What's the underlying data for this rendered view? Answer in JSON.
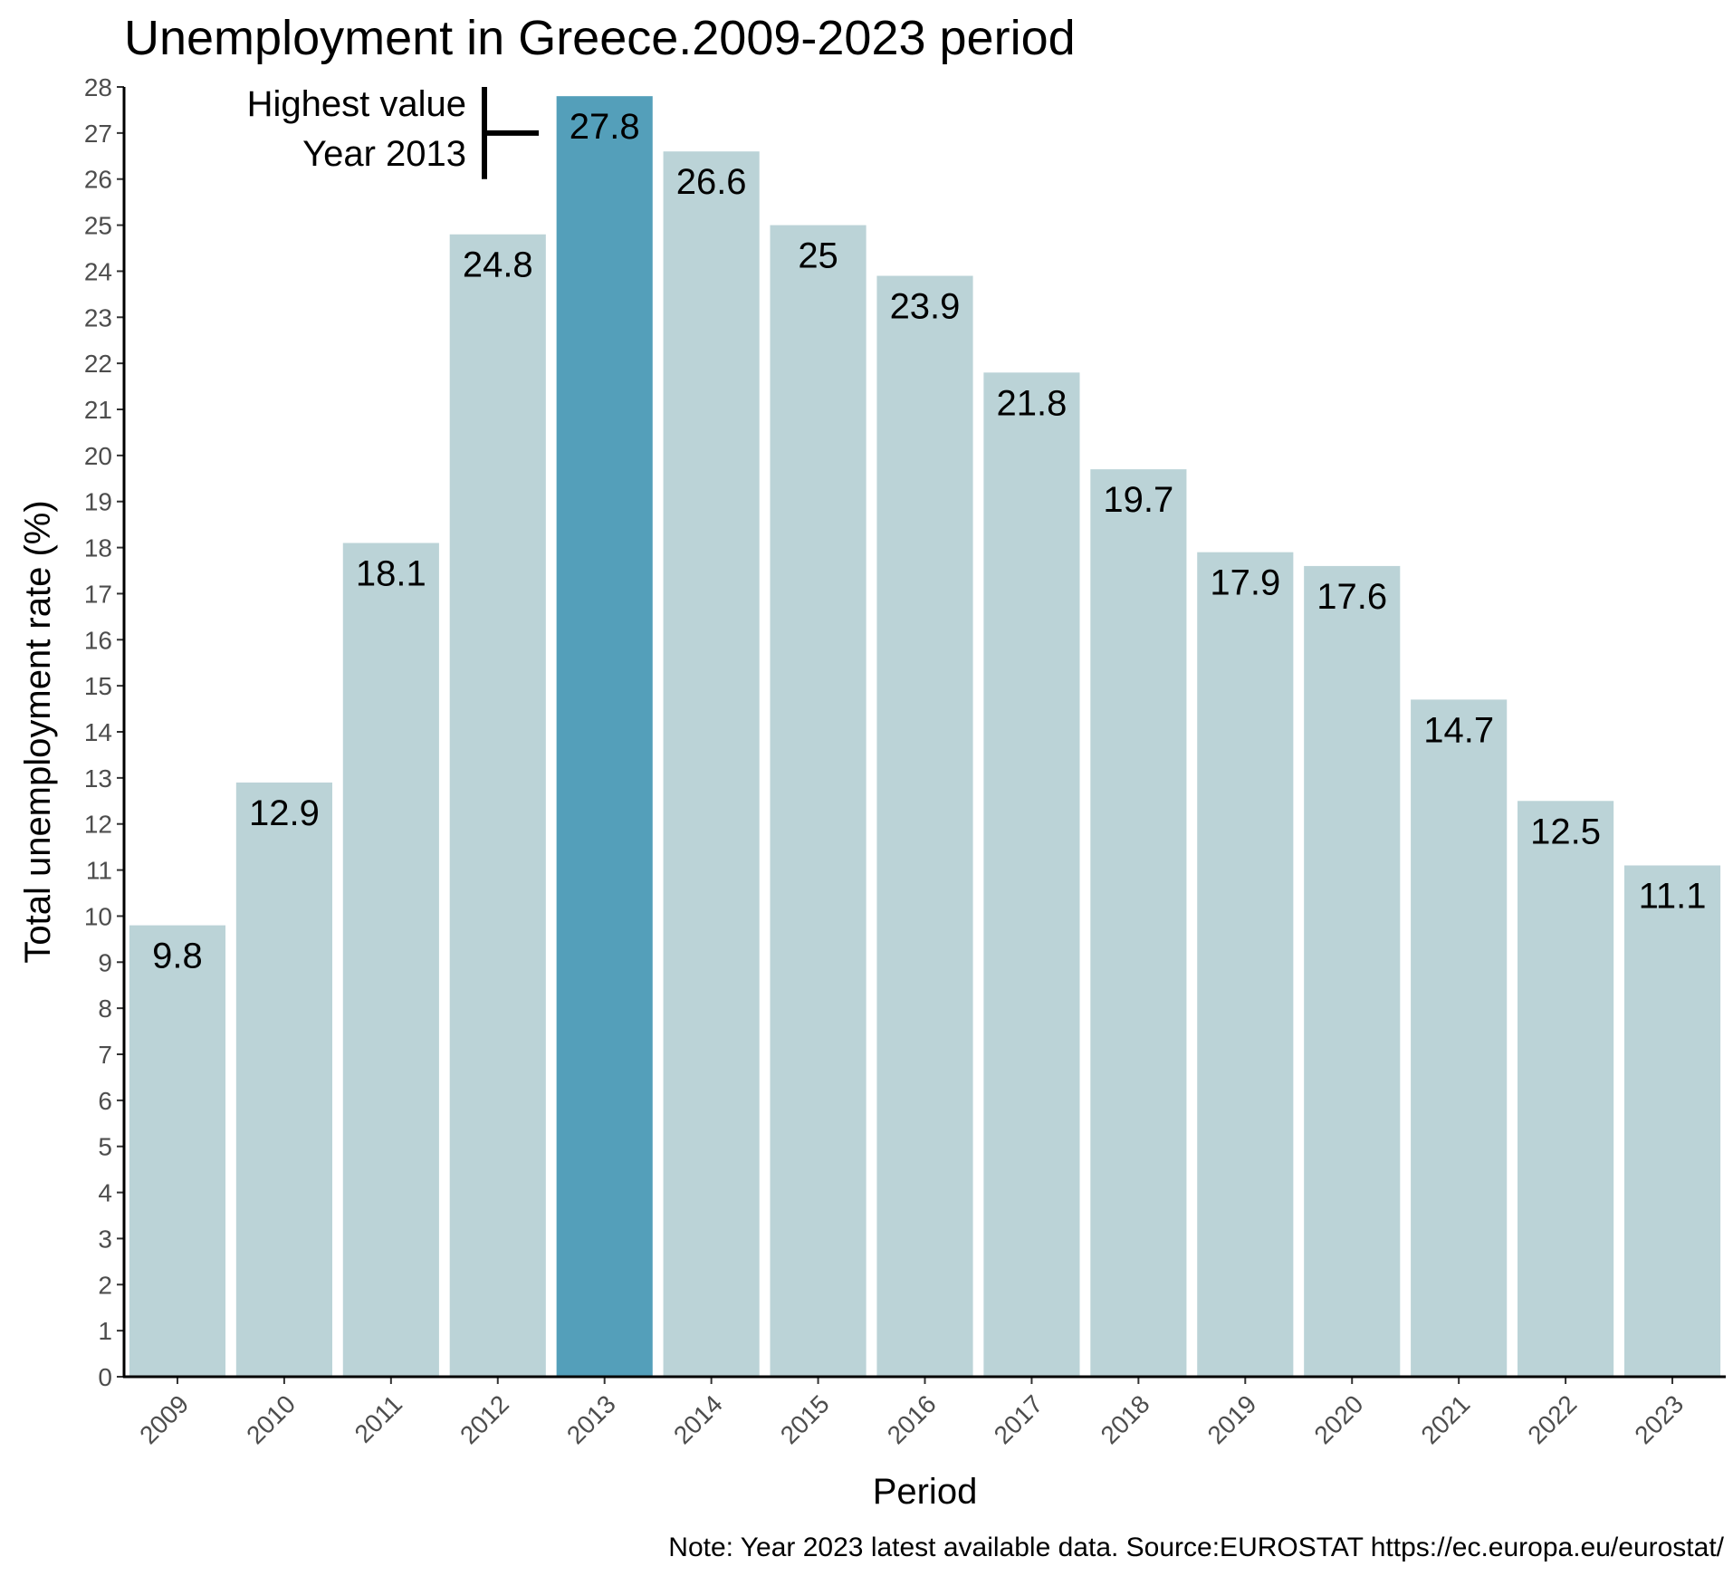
{
  "chart_data": {
    "type": "bar",
    "title": "Unemployment in Greece.2009-2023 period",
    "xlabel": "Period",
    "ylabel": "Total unemployment rate (%)",
    "caption": "Note: Year 2023  latest available data. Source:EUROSTAT https://ec.europa.eu/eurostat/",
    "categories": [
      "2009",
      "2010",
      "2011",
      "2012",
      "2013",
      "2014",
      "2015",
      "2016",
      "2017",
      "2018",
      "2019",
      "2020",
      "2021",
      "2022",
      "2023"
    ],
    "values": [
      9.8,
      12.9,
      18.1,
      24.8,
      27.8,
      26.6,
      25,
      23.9,
      21.8,
      19.7,
      17.9,
      17.6,
      14.7,
      12.5,
      11.1
    ],
    "data_labels": [
      "9.8",
      "12.9",
      "18.1",
      "24.8",
      "27.8",
      "26.6",
      "25",
      "23.9",
      "21.8",
      "19.7",
      "17.9",
      "17.6",
      "14.7",
      "12.5",
      "11.1"
    ],
    "highlight_category": "2013",
    "colors": {
      "bar": "#bbd3d7",
      "highlight": "#549fba",
      "axis": "#000000",
      "tick_text": "#4d4d4d"
    },
    "ylim": [
      0,
      28
    ],
    "yticks": [
      0,
      1,
      2,
      3,
      4,
      5,
      6,
      7,
      8,
      9,
      10,
      11,
      12,
      13,
      14,
      15,
      16,
      17,
      18,
      19,
      20,
      21,
      22,
      23,
      24,
      25,
      26,
      27,
      28
    ],
    "grid": false,
    "legend": "none",
    "annotation": {
      "line1": "Highest value",
      "line2": "Year 2013"
    }
  }
}
